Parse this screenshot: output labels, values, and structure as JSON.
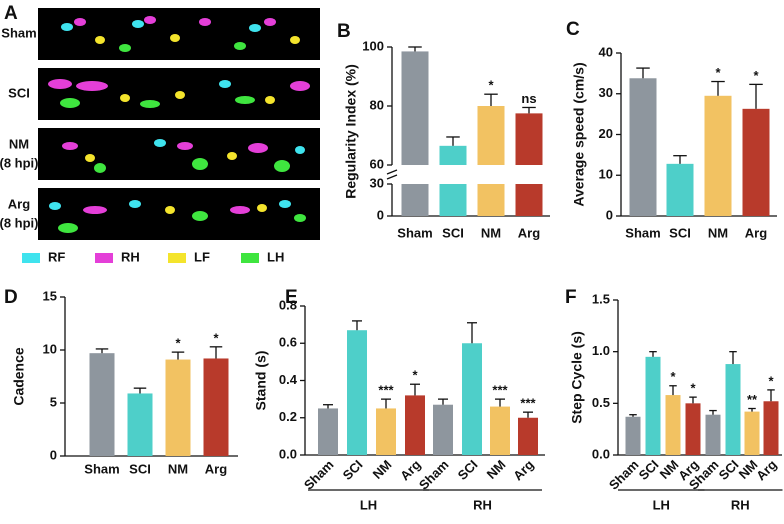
{
  "panel_a": {
    "label": "A",
    "rows": [
      {
        "label": "Sham"
      },
      {
        "label": "SCI"
      },
      {
        "label": "NM",
        "sublabel": "(8 hpi)"
      },
      {
        "label": "Arg",
        "sublabel": "(8 hpi)"
      }
    ],
    "legend": [
      {
        "label": "RF",
        "color": "#3fe3ee"
      },
      {
        "label": "RH",
        "color": "#e43fd8"
      },
      {
        "label": "LF",
        "color": "#f4e42c"
      },
      {
        "label": "LH",
        "color": "#3fe53f"
      }
    ]
  },
  "chart_data": [
    {
      "type": "bar",
      "label": "B",
      "y_label": "Regularity Index (%)",
      "broken_axis": true,
      "categories": [
        "Sham",
        "SCI",
        "NM",
        "Arg"
      ],
      "values": [
        98.5,
        66.5,
        80,
        77.5
      ],
      "errors": [
        1.5,
        3,
        4,
        2
      ],
      "colors": [
        "#8e969e",
        "#4ecfc9",
        "#f2c262",
        "#b83a2b"
      ],
      "annotations": [
        null,
        null,
        "*",
        "ns"
      ],
      "ylim": [
        60,
        100
      ],
      "yticks": [
        60,
        80,
        100
      ],
      "ylim_lower": [
        0,
        30
      ],
      "yticks_lower": [
        0,
        30
      ]
    },
    {
      "type": "bar",
      "label": "C",
      "y_label": "Average speed (cm/s)",
      "categories": [
        "Sham",
        "SCI",
        "NM",
        "Arg"
      ],
      "values": [
        33.8,
        12.8,
        29.5,
        26.3
      ],
      "errors": [
        2.5,
        2,
        3.5,
        6
      ],
      "colors": [
        "#8e969e",
        "#4ecfc9",
        "#f2c262",
        "#b83a2b"
      ],
      "annotations": [
        null,
        null,
        "*",
        "*"
      ],
      "ylim": [
        0,
        40
      ],
      "yticks": [
        0,
        10,
        20,
        30,
        40
      ]
    },
    {
      "type": "bar",
      "label": "D",
      "y_label": "Cadence",
      "categories": [
        "Sham",
        "SCI",
        "NM",
        "Arg"
      ],
      "values": [
        9.7,
        5.9,
        9.1,
        9.2
      ],
      "errors": [
        0.4,
        0.5,
        0.7,
        1.1
      ],
      "colors": [
        "#8e969e",
        "#4ecfc9",
        "#f2c262",
        "#b83a2b"
      ],
      "annotations": [
        null,
        null,
        "*",
        "*"
      ],
      "ylim": [
        0,
        15
      ],
      "yticks": [
        0,
        5,
        10,
        15
      ]
    },
    {
      "type": "bar",
      "label": "E",
      "y_label": "Stand (s)",
      "categories": [
        "Sham",
        "SCI",
        "NM",
        "Arg",
        "Sham",
        "SCI",
        "NM",
        "Arg"
      ],
      "groups": [
        "LH",
        "RH"
      ],
      "values": [
        0.25,
        0.67,
        0.25,
        0.32,
        0.27,
        0.6,
        0.26,
        0.2
      ],
      "errors": [
        0.02,
        0.05,
        0.05,
        0.06,
        0.03,
        0.11,
        0.04,
        0.03
      ],
      "colors": [
        "#8e969e",
        "#4ecfc9",
        "#f2c262",
        "#b83a2b",
        "#8e969e",
        "#4ecfc9",
        "#f2c262",
        "#b83a2b"
      ],
      "annotations": [
        null,
        null,
        "***",
        "*",
        null,
        null,
        "***",
        "***"
      ],
      "ylim": [
        0,
        0.8
      ],
      "yticks": [
        {
          "value": 0,
          "label": "0.0"
        },
        0.2,
        0.4,
        0.6,
        0.8
      ]
    },
    {
      "type": "bar",
      "label": "F",
      "y_label": "Step Cycle (s)",
      "categories": [
        "Sham",
        "SCI",
        "NM",
        "Arg",
        "Sham",
        "SCI",
        "NM",
        "Arg"
      ],
      "groups": [
        "LH",
        "RH"
      ],
      "values": [
        0.37,
        0.95,
        0.58,
        0.5,
        0.39,
        0.88,
        0.42,
        0.52
      ],
      "errors": [
        0.02,
        0.05,
        0.09,
        0.06,
        0.04,
        0.12,
        0.03,
        0.11
      ],
      "colors": [
        "#8e969e",
        "#4ecfc9",
        "#f2c262",
        "#b83a2b",
        "#8e969e",
        "#4ecfc9",
        "#f2c262",
        "#b83a2b"
      ],
      "annotations": [
        null,
        null,
        "*",
        "*",
        null,
        null,
        "**",
        "*"
      ],
      "ylim": [
        0,
        1.5
      ],
      "yticks": [
        {
          "value": 0,
          "label": "0.0"
        },
        0.5,
        {
          "value": 1,
          "label": "1.0"
        },
        1.5
      ]
    }
  ]
}
